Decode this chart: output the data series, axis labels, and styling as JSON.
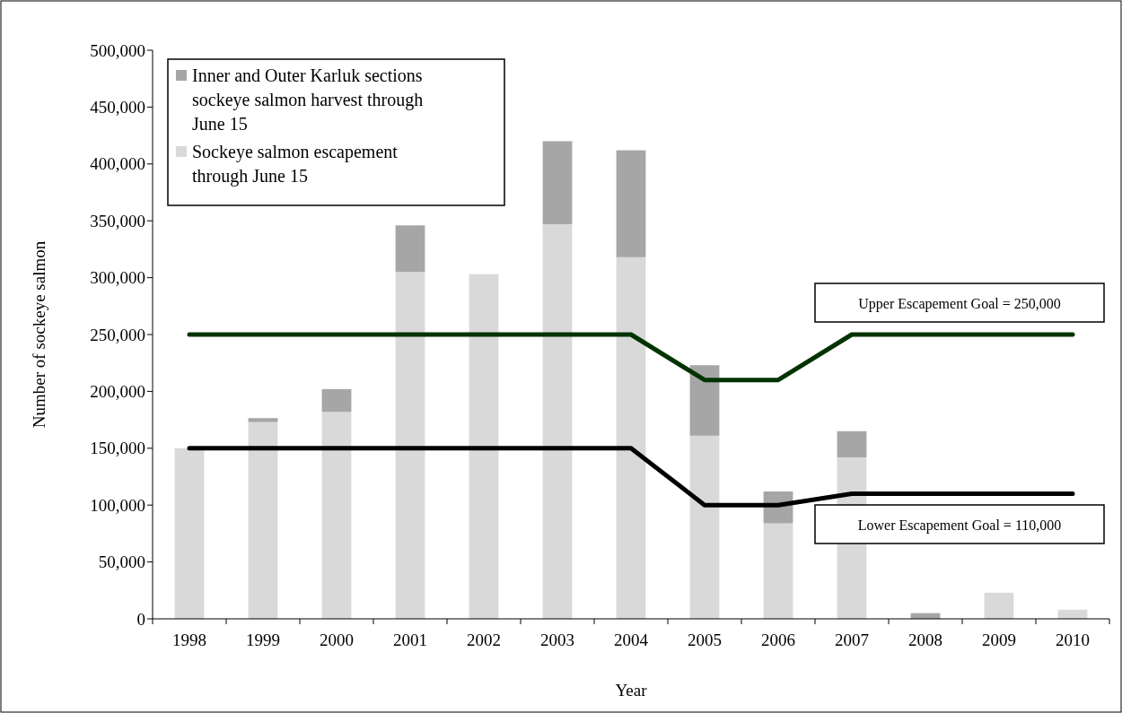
{
  "chart_data": {
    "type": "bar",
    "stacked": true,
    "xlabel": "Year",
    "ylabel": "Number of sockeye salmon",
    "categories": [
      "1998",
      "1999",
      "2000",
      "2001",
      "2002",
      "2003",
      "2004",
      "2005",
      "2006",
      "2007",
      "2008",
      "2009",
      "2010"
    ],
    "series": [
      {
        "name": "Sockeye salmon escapement through June 15",
        "color": "#d9d9d9",
        "values": [
          150000,
          173000,
          182000,
          305000,
          303000,
          347000,
          318000,
          161000,
          84000,
          142000,
          0,
          23000,
          8000
        ]
      },
      {
        "name": "Inner and Outer Karluk sections sockeye salmon harvest through June 15",
        "color": "#a6a6a6",
        "values": [
          0,
          3500,
          20000,
          41000,
          0,
          73000,
          94000,
          62000,
          28000,
          23000,
          5000,
          0,
          0
        ]
      },
      {
        "type": "line",
        "color": "#003300",
        "values": [
          250000,
          250000,
          250000,
          250000,
          250000,
          250000,
          250000,
          210000,
          210000,
          250000,
          250000,
          250000,
          250000
        ]
      },
      {
        "type": "line",
        "color": "#000000",
        "values": [
          150000,
          150000,
          150000,
          150000,
          150000,
          150000,
          150000,
          100000,
          100000,
          110000,
          110000,
          110000,
          110000
        ]
      }
    ],
    "ylim": [
      0,
      500000
    ],
    "yticks": [
      {
        "value": 0,
        "label": "0"
      },
      {
        "value": 50000,
        "label": "50,000"
      },
      {
        "value": 100000,
        "label": "100,000"
      },
      {
        "value": 150000,
        "label": "150,000"
      },
      {
        "value": 200000,
        "label": "200,000"
      },
      {
        "value": 250000,
        "label": "250,000"
      },
      {
        "value": 300000,
        "label": "300,000"
      },
      {
        "value": 350000,
        "label": "350,000"
      },
      {
        "value": 400000,
        "label": "400,000"
      },
      {
        "value": 450000,
        "label": "450,000"
      },
      {
        "value": 500000,
        "label": "500,000"
      }
    ],
    "annotations": [
      "Upper Escapement Goal = 250,000",
      "Lower Escapement Goal = 110,000"
    ],
    "legend": "top left",
    "grid": false
  }
}
